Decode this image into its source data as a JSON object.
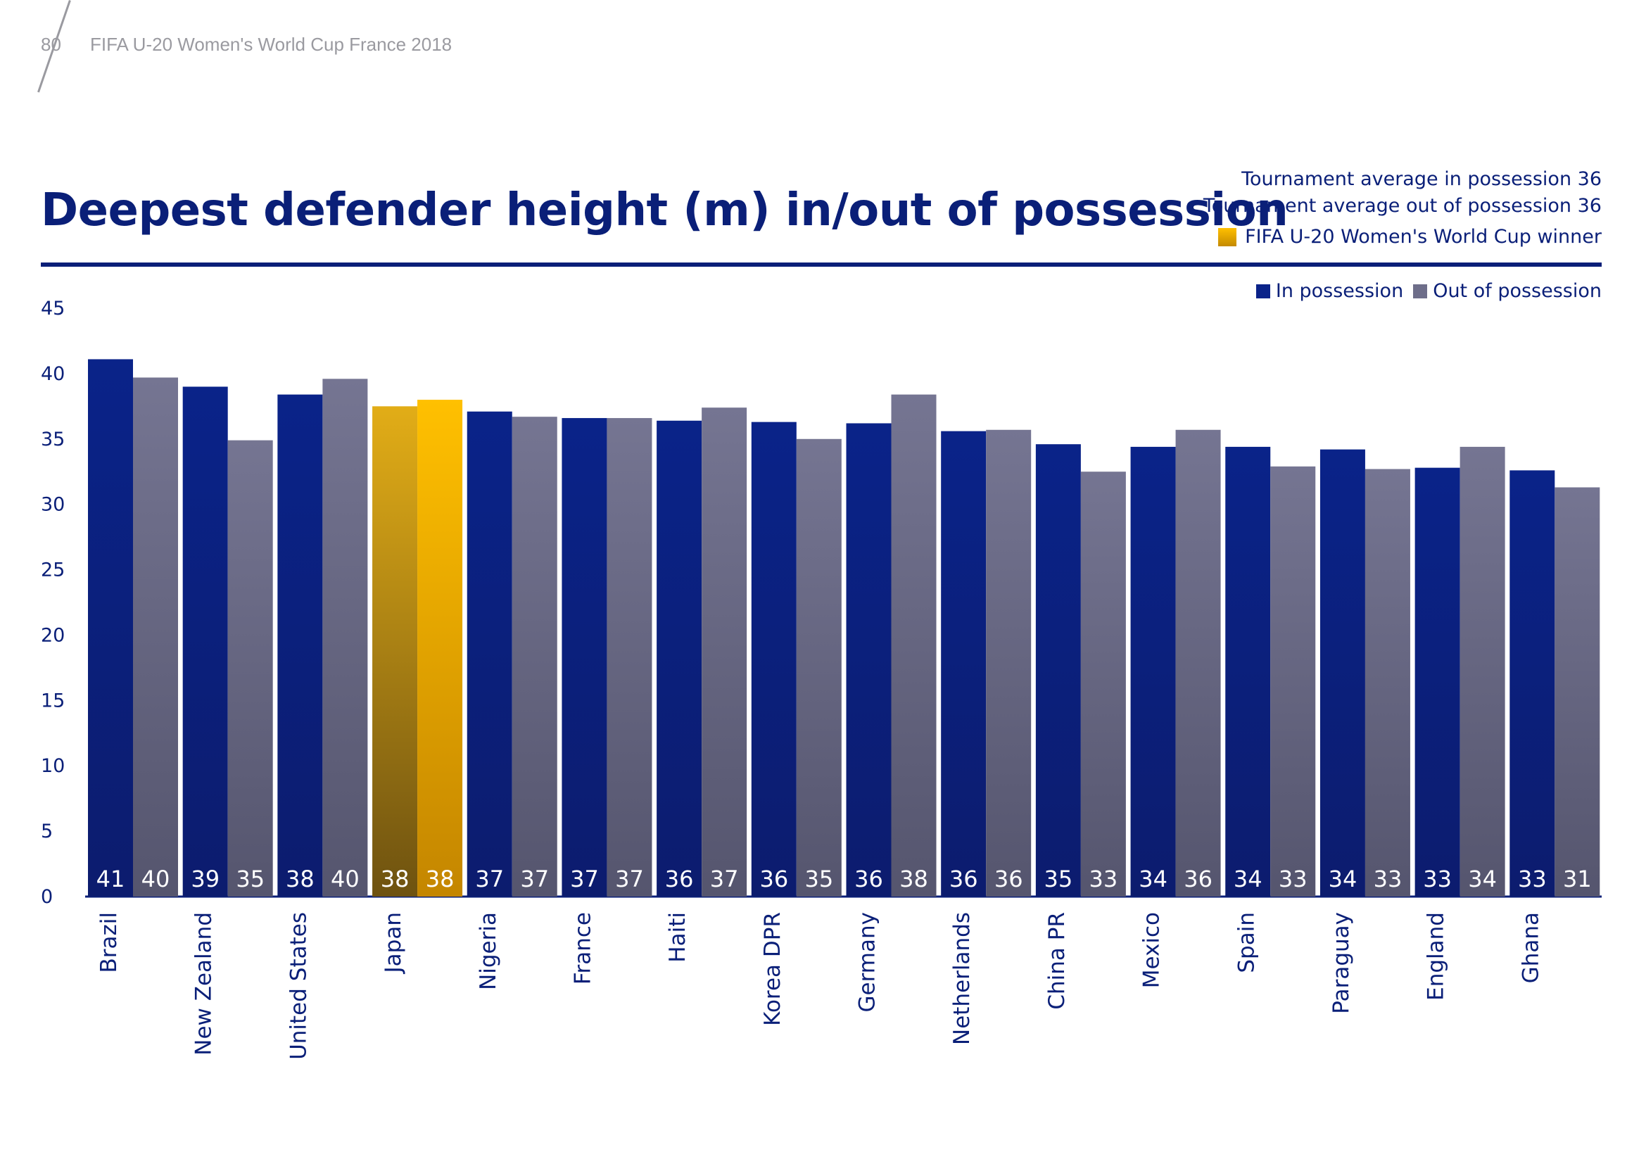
{
  "header": {
    "page_number": "80",
    "document_title": "FIFA U-20 Women's World Cup France 2018"
  },
  "colors": {
    "in_possession": "#0a2389",
    "out_of_possession": "#6e6e8a",
    "winner": "#ffc000",
    "text": "#0a1f78"
  },
  "chart_data": {
    "type": "bar",
    "title": "Deepest defender height (m) in/out of possession",
    "annotations": [
      "Tournament average in possession 36",
      "Tournament average out of possession 36"
    ],
    "winner_legend": "FIFA U-20 Women's World Cup winner",
    "winner_category": "Japan",
    "legend_position": "top-right",
    "grid": false,
    "ylim": [
      0,
      45
    ],
    "yticks": [
      0,
      5,
      10,
      15,
      20,
      25,
      30,
      35,
      40,
      45
    ],
    "categories": [
      "Brazil",
      "New Zealand",
      "United States",
      "Japan",
      "Nigeria",
      "France",
      "Haiti",
      "Korea DPR",
      "Germany",
      "Netherlands",
      "China PR",
      "Mexico",
      "Spain",
      "Paraguay",
      "England",
      "Ghana"
    ],
    "series": [
      {
        "name": "In possession",
        "values": [
          41.1,
          39.0,
          38.4,
          37.5,
          37.1,
          36.6,
          36.4,
          36.3,
          36.2,
          35.6,
          34.6,
          34.4,
          34.4,
          34.2,
          32.8,
          32.6
        ],
        "labels": [
          "41",
          "39",
          "38",
          "38",
          "37",
          "37",
          "36",
          "36",
          "36",
          "36",
          "35",
          "34",
          "34",
          "34",
          "33",
          "33"
        ]
      },
      {
        "name": "Out of possession",
        "values": [
          39.7,
          34.9,
          39.6,
          38.0,
          36.7,
          36.6,
          37.4,
          35.0,
          38.4,
          35.7,
          32.5,
          35.7,
          32.9,
          32.7,
          34.4,
          31.3
        ],
        "labels": [
          "40",
          "35",
          "40",
          "38",
          "37",
          "37",
          "37",
          "35",
          "38",
          "36",
          "33",
          "36",
          "33",
          "33",
          "34",
          "31"
        ]
      }
    ]
  }
}
